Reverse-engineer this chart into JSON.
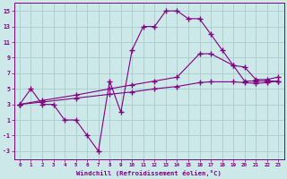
{
  "xlabel": "Windchill (Refroidissement éolien,°C)",
  "xlim": [
    -0.5,
    23.5
  ],
  "ylim": [
    -4,
    16
  ],
  "xtick_labels": [
    "0",
    "1",
    "2",
    "3",
    "4",
    "5",
    "6",
    "7",
    "8",
    "9",
    "10",
    "11",
    "12",
    "13",
    "14",
    "15",
    "16",
    "17",
    "18",
    "19",
    "20",
    "21",
    "22",
    "23"
  ],
  "ytick_labels": [
    "-3",
    "-1",
    "1",
    "3",
    "5",
    "7",
    "9",
    "11",
    "13",
    "15"
  ],
  "yticks": [
    -3,
    -1,
    1,
    3,
    5,
    7,
    9,
    11,
    13,
    15
  ],
  "background_color": "#cce8e8",
  "line_color": "#800080",
  "grid_color": "#aacccc",
  "line1_x": [
    0,
    1,
    2,
    3,
    4,
    5,
    6,
    7,
    8,
    9,
    10,
    11,
    12,
    13,
    14,
    15,
    16,
    17,
    18,
    19,
    20,
    21,
    22,
    23
  ],
  "line1_y": [
    3,
    5,
    3,
    3,
    1,
    1,
    -1,
    -3,
    6,
    2,
    10,
    13,
    13,
    15,
    15,
    14,
    14,
    12,
    10,
    8,
    6,
    6,
    6,
    6
  ],
  "line2_x": [
    0,
    2,
    5,
    8,
    10,
    12,
    14,
    16,
    17,
    19,
    20,
    21,
    22,
    23
  ],
  "line2_y": [
    3,
    3.5,
    4.2,
    5.0,
    5.5,
    6.0,
    6.5,
    9.5,
    9.5,
    8.0,
    7.8,
    6.2,
    6.2,
    6.5
  ],
  "line3_x": [
    0,
    2,
    5,
    8,
    10,
    12,
    14,
    16,
    17,
    19,
    20,
    21,
    22,
    23
  ],
  "line3_y": [
    3,
    3.3,
    3.8,
    4.3,
    4.6,
    5.0,
    5.3,
    5.8,
    5.9,
    5.9,
    5.8,
    5.7,
    5.8,
    6.0
  ]
}
